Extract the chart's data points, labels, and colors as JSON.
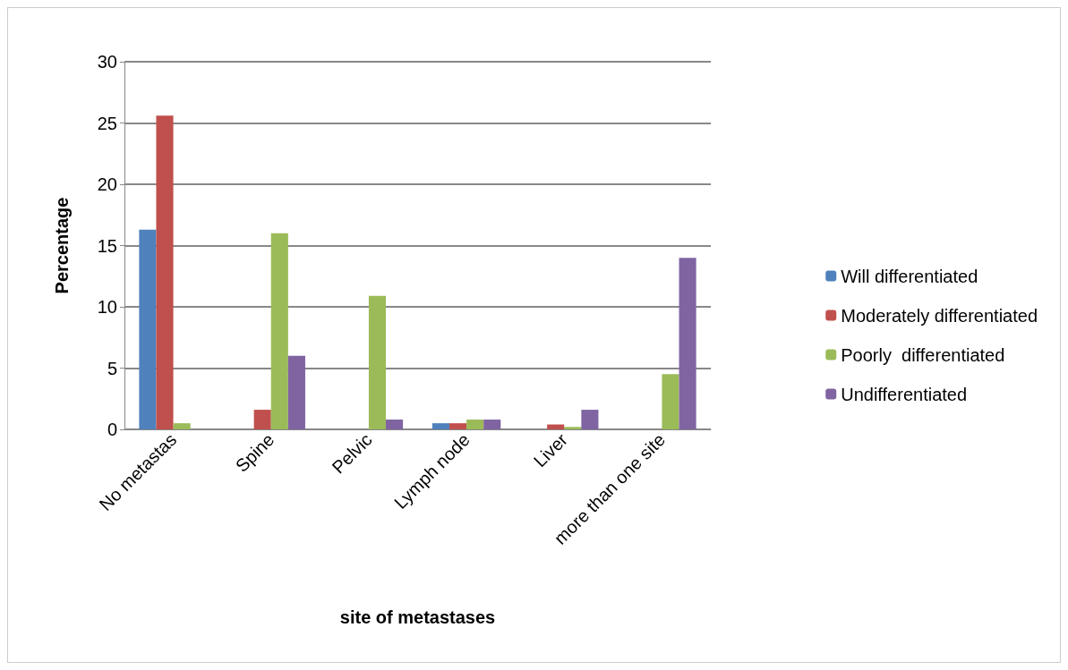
{
  "chart_data": {
    "type": "bar",
    "xlabel": "site of metastases",
    "ylabel": "Percentage",
    "categories": [
      "No metastas",
      "Spine",
      "Pelvic",
      "Lymph node",
      "Liver",
      "more than one site"
    ],
    "series": [
      {
        "name": "Will differentiated",
        "color": "#4f81bd",
        "values": [
          16.3,
          0,
          0,
          0.5,
          0,
          0
        ]
      },
      {
        "name": "Moderately differentiated",
        "color": "#c0504d",
        "values": [
          25.6,
          1.6,
          0,
          0.5,
          0.4,
          0
        ]
      },
      {
        "name": "Poorly  differentiated",
        "color": "#9bbb59",
        "values": [
          0.5,
          16,
          10.9,
          0.8,
          0.2,
          4.5
        ]
      },
      {
        "name": "Undifferentiated",
        "color": "#8064a2",
        "values": [
          0,
          6,
          0.8,
          0.8,
          1.6,
          14
        ]
      }
    ],
    "ylim": [
      0,
      30
    ],
    "yticks": [
      0,
      5,
      10,
      15,
      20,
      25,
      30
    ],
    "grid": "y",
    "legend": "right"
  }
}
